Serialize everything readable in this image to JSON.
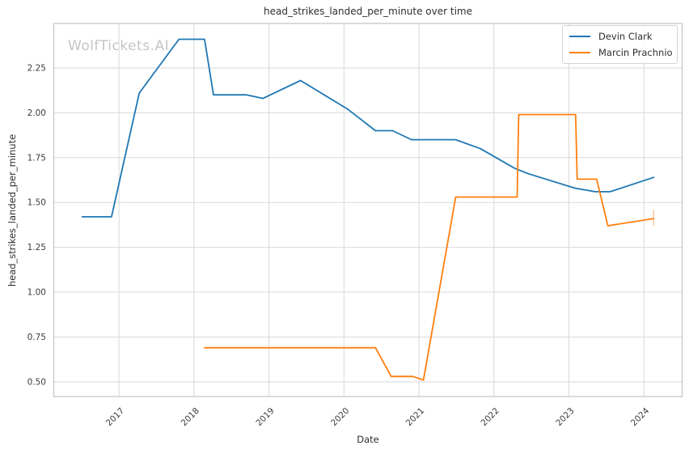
{
  "chart_data": {
    "type": "line",
    "title": "head_strikes_landed_per_minute over time",
    "xlabel": "Date",
    "ylabel": "head_strikes_landed_per_minute",
    "watermark": "WolfTickets.AI",
    "grid": true,
    "legend_position": "upper right",
    "xlim": [
      2016.13,
      2024.51
    ],
    "ylim": [
      0.418,
      2.498
    ],
    "xtick_labels": [
      "2017",
      "2018",
      "2019",
      "2020",
      "2021",
      "2022",
      "2023",
      "2024"
    ],
    "ytick_labels": [
      "0.50",
      "0.75",
      "1.00",
      "1.25",
      "1.50",
      "1.75",
      "2.00",
      "2.25"
    ],
    "x_unit": "decimal_year",
    "series": [
      {
        "name": "Devin Clark",
        "color": "#1f77b4",
        "x": [
          2016.51,
          2016.9,
          2017.27,
          2017.8,
          2018.14,
          2018.26,
          2018.7,
          2018.92,
          2019.42,
          2020.05,
          2020.42,
          2020.65,
          2020.9,
          2021.49,
          2021.82,
          2022.28,
          2022.46,
          2023.08,
          2023.35,
          2023.55,
          2024.13
        ],
        "y": [
          1.42,
          1.42,
          2.11,
          2.41,
          2.41,
          2.1,
          2.1,
          2.08,
          2.18,
          2.02,
          1.9,
          1.9,
          1.85,
          1.85,
          1.8,
          1.69,
          1.66,
          1.58,
          1.56,
          1.56,
          1.64
        ]
      },
      {
        "name": "Marcin Prachnio",
        "color": "#ff7f0e",
        "x": [
          2018.14,
          2020.42,
          2020.63,
          2020.92,
          2021.06,
          2021.49,
          2022.31,
          2022.33,
          2023.09,
          2023.11,
          2023.37,
          2023.52,
          2024.13
        ],
        "y": [
          0.69,
          0.69,
          0.53,
          0.53,
          0.51,
          1.53,
          1.53,
          1.99,
          1.99,
          1.63,
          1.63,
          1.37,
          1.41
        ],
        "end_tick": {
          "x": 2024.13,
          "y1": 1.37,
          "y2": 1.46
        }
      }
    ]
  }
}
